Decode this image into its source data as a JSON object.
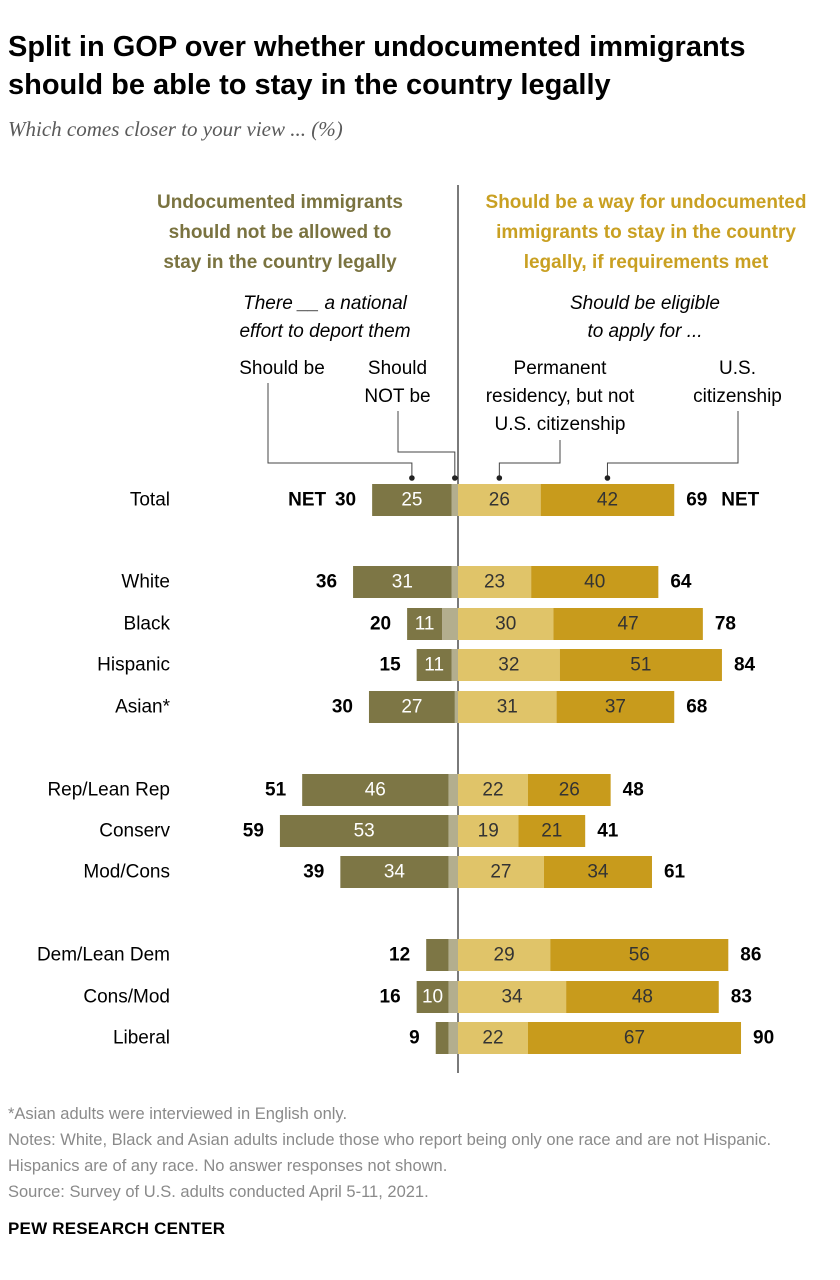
{
  "title": "Split in GOP over whether undocumented immigrants should be able to stay in the country legally",
  "subtitle": "Which comes closer to your view ... (%)",
  "headers": {
    "left_line1": "Undocumented immigrants",
    "left_line2": "should not be allowed to",
    "left_line3": "stay in the country legally",
    "right_line1": "Should be a way for undocumented",
    "right_line2": "immigrants to stay in the country",
    "right_line3": "legally, if requirements met"
  },
  "subheaders": {
    "left_line1": "There __ a national",
    "left_line2": "effort to deport them",
    "right_line1": "Should be eligible",
    "right_line2": "to apply for ..."
  },
  "column_heads": {
    "should_be": "Should be",
    "should_not_line1": "Should",
    "should_not_line2": "NOT be",
    "perm_line1": "Permanent",
    "perm_line2": "residency, but not",
    "perm_line3": "U.S. citizenship",
    "citiz_line1": "U.S.",
    "citiz_line2": "citizenship"
  },
  "colors": {
    "deport_should": "#7d7645",
    "deport_should_not": "#b3ae8e",
    "permanent": "#e0c469",
    "citizenship": "#c89b1c",
    "header_left": "#7a7340",
    "header_right": "#c9a022"
  },
  "chart_data": {
    "type": "bar",
    "orientation": "horizontal-diverging",
    "series": [
      {
        "name": "Should be (deport)",
        "side": "left"
      },
      {
        "name": "Should NOT be (deport)",
        "side": "left"
      },
      {
        "name": "Permanent residency, but not U.S. citizenship",
        "side": "right"
      },
      {
        "name": "U.S. citizenship",
        "side": "right"
      }
    ],
    "net_prefix_left": "NET",
    "net_suffix_right": "NET",
    "rows": [
      {
        "label": "Total",
        "net_left": 30,
        "deport_should": 25,
        "deport_should_not": 2,
        "permanent": 26,
        "citizenship": 42,
        "net_right": 69,
        "show_net_word": true
      },
      {
        "label": "White",
        "net_left": 36,
        "deport_should": 31,
        "deport_should_not": 2,
        "permanent": 23,
        "citizenship": 40,
        "net_right": 64
      },
      {
        "label": "Black",
        "net_left": 20,
        "deport_should": 11,
        "deport_should_not": 5,
        "permanent": 30,
        "citizenship": 47,
        "net_right": 78
      },
      {
        "label": "Hispanic",
        "net_left": 15,
        "deport_should": 11,
        "deport_should_not": 2,
        "permanent": 32,
        "citizenship": 51,
        "net_right": 84
      },
      {
        "label": "Asian*",
        "net_left": 30,
        "deport_should": 27,
        "deport_should_not": 1,
        "permanent": 31,
        "citizenship": 37,
        "net_right": 68
      },
      {
        "label": "Rep/Lean Rep",
        "net_left": 51,
        "deport_should": 46,
        "deport_should_not": 3,
        "permanent": 22,
        "citizenship": 26,
        "net_right": 48
      },
      {
        "label": "Conserv",
        "net_left": 59,
        "deport_should": 53,
        "deport_should_not": 3,
        "permanent": 19,
        "citizenship": 21,
        "net_right": 41
      },
      {
        "label": "Mod/Cons",
        "net_left": 39,
        "deport_should": 34,
        "deport_should_not": 3,
        "permanent": 27,
        "citizenship": 34,
        "net_right": 61
      },
      {
        "label": "Dem/Lean Dem",
        "net_left": 12,
        "deport_should": 7,
        "deport_should_not": 3,
        "permanent": 29,
        "citizenship": 56,
        "net_right": 86
      },
      {
        "label": "Cons/Mod",
        "net_left": 16,
        "deport_should": 10,
        "deport_should_not": 3,
        "permanent": 34,
        "citizenship": 48,
        "net_right": 83
      },
      {
        "label": "Liberal",
        "net_left": 9,
        "deport_should": 4,
        "deport_should_not": 3,
        "permanent": 22,
        "citizenship": 67,
        "net_right": 90
      }
    ],
    "label_threshold": 8
  },
  "footnotes": {
    "asterisk": "*Asian adults were interviewed in English only.",
    "notes": "Notes: White, Black and Asian adults include those who report being only one race and are not Hispanic. Hispanics are of any race. No answer responses not shown.",
    "source": "Source: Survey of U.S. adults conducted April 5-11, 2021."
  },
  "brand": "PEW RESEARCH CENTER"
}
